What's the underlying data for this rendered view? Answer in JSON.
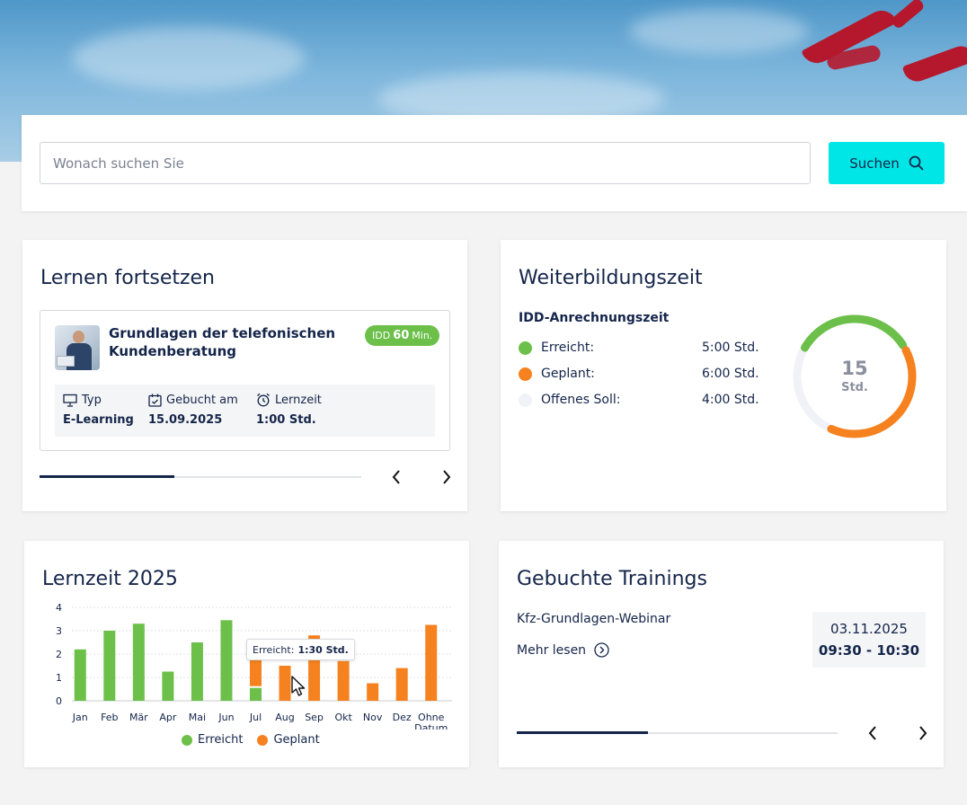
{
  "search": {
    "placeholder": "Wonach suchen Sie",
    "button_label": "Suchen",
    "button_icon": "search-icon"
  },
  "continue_learning": {
    "title": "Lernen fortsetzen",
    "course": {
      "title": "Grundlagen der telefonischen Kundenberatung",
      "badge_prefix": "IDD",
      "badge_value": "60",
      "badge_unit": "Min.",
      "type_label": "Typ",
      "type_value": "E-Learning",
      "booked_label": "Gebucht am",
      "booked_value": "15.09.2025",
      "duration_label": "Lernzeit",
      "duration_value": "1:00 Std."
    },
    "progress_percent": 42
  },
  "training_time": {
    "title": "Weiterbildungszeit",
    "subtitle": "IDD-Anrechnungszeit",
    "rows": [
      {
        "label": "Erreicht:",
        "value": "5:00 Std.",
        "color": "#6cc04a",
        "hours": 5
      },
      {
        "label": "Geplant:",
        "value": "6:00 Std.",
        "color": "#f5821f",
        "hours": 6
      },
      {
        "label": "Offenes Soll:",
        "value": "4:00 Std.",
        "color": "#f1f2f8",
        "hours": 4
      }
    ],
    "total_value": "15",
    "total_unit": "Std."
  },
  "learning_chart": {
    "title": "Lernzeit 2025",
    "tooltip_label": "Erreicht:",
    "tooltip_value": "1:30 Std.",
    "legend": [
      {
        "label": "Erreicht",
        "color": "#6cc04a"
      },
      {
        "label": "Geplant",
        "color": "#f5821f"
      }
    ]
  },
  "chart_data": {
    "type": "bar",
    "title": "Lernzeit 2025",
    "categories": [
      "Jan",
      "Feb",
      "Mär",
      "Apr",
      "Mai",
      "Jun",
      "Jul",
      "Aug",
      "Sep",
      "Okt",
      "Nov",
      "Dez",
      "Ohne Datum"
    ],
    "series": [
      {
        "name": "Erreicht",
        "color": "#6cc04a",
        "values": [
          2.2,
          3.0,
          3.3,
          1.25,
          2.5,
          3.45,
          0.55,
          0,
          0,
          0,
          0,
          0,
          0
        ]
      },
      {
        "name": "Geplant",
        "color": "#f5821f",
        "values": [
          0,
          0,
          0,
          0,
          0,
          0,
          1.25,
          1.5,
          2.8,
          1.7,
          0.75,
          1.4,
          3.25
        ]
      }
    ],
    "stacked": true,
    "ylim": [
      0,
      4
    ],
    "yticks": [
      0,
      1,
      2,
      3,
      4
    ],
    "grid": true,
    "legend_position": "bottom"
  },
  "booked_trainings": {
    "title": "Gebuchte Trainings",
    "item_name": "Kfz-Grundlagen-Webinar",
    "more_label": "Mehr lesen",
    "date": "03.11.2025",
    "time": "09:30 - 10:30",
    "progress_percent": 41
  }
}
